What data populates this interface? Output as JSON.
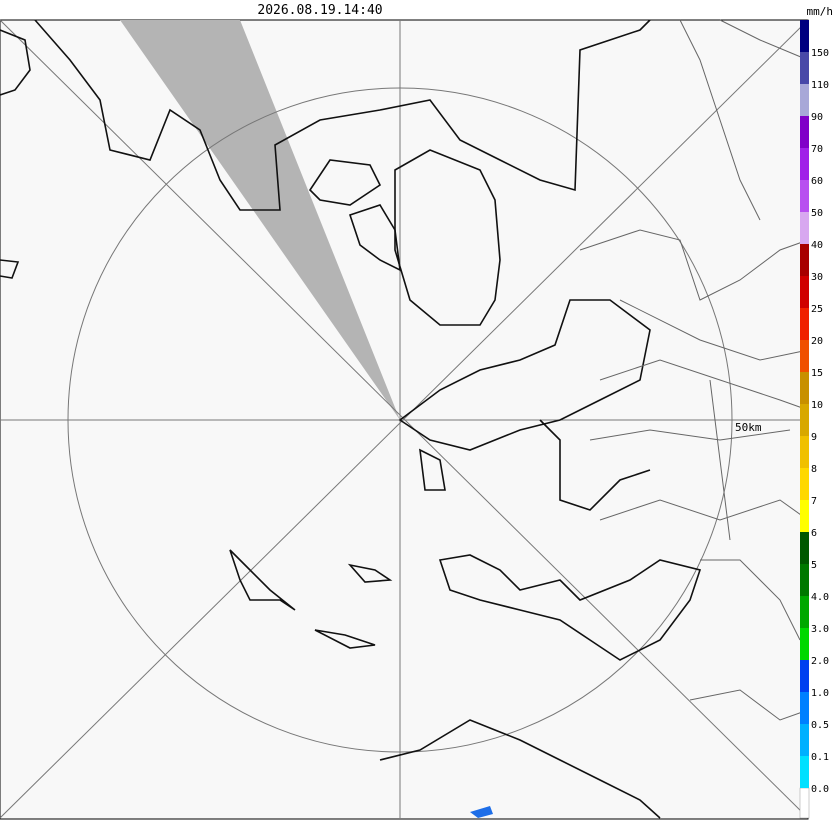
{
  "header": {
    "timestamp": "2026.08.19.14:40"
  },
  "map": {
    "range_label": "50km"
  },
  "legend": {
    "unit": "mm/h",
    "items": [
      {
        "label": "150",
        "color": "#000080"
      },
      {
        "label": "110",
        "color": "#4848a8"
      },
      {
        "label": "90",
        "color": "#a8a8d8"
      },
      {
        "label": "70",
        "color": "#8000c8"
      },
      {
        "label": "60",
        "color": "#a020e8"
      },
      {
        "label": "50",
        "color": "#b850f0"
      },
      {
        "label": "40",
        "color": "#d8a8f0"
      },
      {
        "label": "30",
        "color": "#a80000"
      },
      {
        "label": "25",
        "color": "#d00000"
      },
      {
        "label": "20",
        "color": "#f02000"
      },
      {
        "label": "15",
        "color": "#f05000"
      },
      {
        "label": "10",
        "color": "#c89000"
      },
      {
        "label": "9",
        "color": "#d8a800"
      },
      {
        "label": "8",
        "color": "#f0c000"
      },
      {
        "label": "7",
        "color": "#ffd800"
      },
      {
        "label": "6",
        "color": "#ffff00"
      },
      {
        "label": "5",
        "color": "#005800"
      },
      {
        "label": "4.0",
        "color": "#007800"
      },
      {
        "label": "3.0",
        "color": "#00a800"
      },
      {
        "label": "2.0",
        "color": "#00d800"
      },
      {
        "label": "1.0",
        "color": "#0040f0"
      },
      {
        "label": "0.5",
        "color": "#0080ff"
      },
      {
        "label": "0.1",
        "color": "#00b0ff"
      },
      {
        "label": "0.0",
        "color": "#00e0ff"
      }
    ]
  }
}
